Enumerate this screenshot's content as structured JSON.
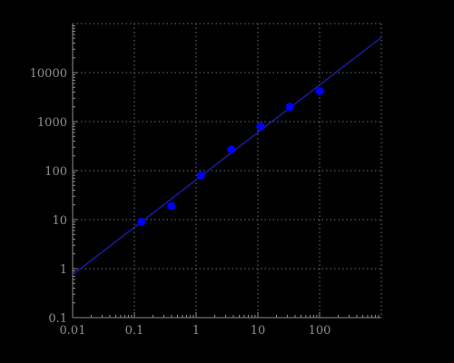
{
  "colors": {
    "background": "#000000",
    "axis": "#8c8c8c",
    "grid": "#6e6e6e",
    "points": "#0000ff",
    "fit_line": "#1a1aa0"
  },
  "chart_data": {
    "type": "scatter",
    "x_scale": "log",
    "y_scale": "log",
    "xlim": [
      0.01,
      1000
    ],
    "ylim": [
      0.1,
      100000
    ],
    "grid": true,
    "x_ticks": [
      0.01,
      0.1,
      1,
      10,
      100
    ],
    "x_tick_labels": [
      "0.01",
      "0.1",
      "1",
      "10",
      "100"
    ],
    "y_ticks": [
      0.1,
      1,
      10,
      100,
      1000,
      10000
    ],
    "y_tick_labels": [
      "0.1",
      "1",
      "10",
      "100",
      "1000",
      "10000"
    ],
    "series": [
      {
        "kind": "points",
        "x": [
          0.13,
          0.4,
          1.2,
          3.7,
          11,
          33,
          100
        ],
        "y": [
          9,
          19,
          80,
          270,
          800,
          2000,
          4200
        ]
      },
      {
        "kind": "line",
        "x": [
          0.01,
          1000
        ],
        "y": [
          0.75,
          52000
        ]
      }
    ]
  }
}
